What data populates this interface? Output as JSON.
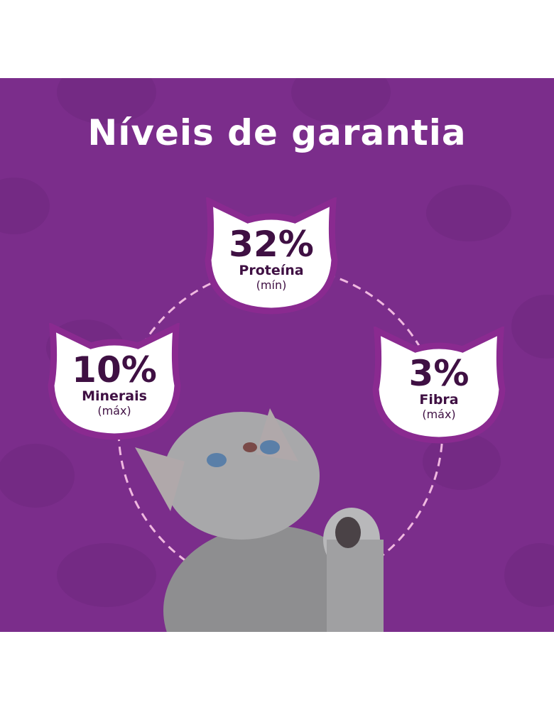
{
  "title": "Níveis de garantia",
  "colors": {
    "panel": "#7b2d8b",
    "badge_border": "#8a2a90",
    "badge_text": "#3f1043",
    "dash": "#f0b8e0"
  },
  "badges": [
    {
      "value": "32%",
      "label": "Proteína",
      "qualifier": "(mín)"
    },
    {
      "value": "10%",
      "label": "Minerais",
      "qualifier": "(máx)"
    },
    {
      "value": "3%",
      "label": "Fibra",
      "qualifier": "(máx)"
    }
  ]
}
